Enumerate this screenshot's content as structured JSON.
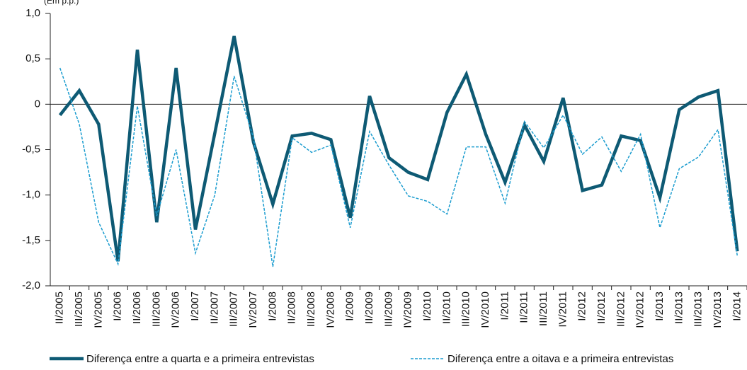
{
  "chart_data": {
    "type": "line",
    "y_axis_label": "(Em p.p.)",
    "categories": [
      "II/2005",
      "III/2005",
      "IV/2005",
      "I/2006",
      "II/2006",
      "III/2006",
      "IV/2006",
      "I/2007",
      "II/2007",
      "III/2007",
      "IV/2007",
      "I/2008",
      "II/2008",
      "III/2008",
      "IV/2008",
      "I/2009",
      "II/2009",
      "III/2009",
      "IV/2009",
      "I/2010",
      "II/2010",
      "III/2010",
      "IV/2010",
      "I/2011",
      "II/2011",
      "III/2011",
      "IV/2011",
      "I/2012",
      "II/2012",
      "III/2012",
      "IV/2012",
      "I/2013",
      "II/2013",
      "III/2013",
      "IV/2013",
      "I/2014"
    ],
    "series": [
      {
        "name": "Diferença entre a quarta e a primeira entrevistas",
        "color": "#0e5a74",
        "style": "solid",
        "values": [
          -0.12,
          0.15,
          -0.22,
          -1.73,
          0.6,
          -1.3,
          0.4,
          -1.38,
          -0.32,
          0.75,
          -0.42,
          -1.1,
          -0.35,
          -0.32,
          -0.39,
          -1.25,
          0.09,
          -0.59,
          -0.75,
          -0.83,
          -0.09,
          0.33,
          -0.33,
          -0.86,
          -0.23,
          -0.63,
          0.07,
          -0.95,
          -0.89,
          -0.35,
          -0.4,
          -1.03,
          -0.06,
          0.08,
          0.15,
          -1.62
        ]
      },
      {
        "name": "Diferença entre a oitava e a primeira entrevistas",
        "color": "#1a9ccf",
        "style": "dashed",
        "values": [
          0.4,
          -0.22,
          -1.3,
          -1.76,
          -0.02,
          -1.23,
          -0.5,
          -1.64,
          -1.0,
          0.31,
          -0.37,
          -1.79,
          -0.37,
          -0.53,
          -0.45,
          -1.36,
          -0.3,
          -0.67,
          -1.01,
          -1.07,
          -1.21,
          -0.47,
          -0.47,
          -1.09,
          -0.19,
          -0.48,
          -0.12,
          -0.55,
          -0.36,
          -0.74,
          -0.33,
          -1.36,
          -0.71,
          -0.58,
          -0.28,
          -1.67
        ]
      }
    ],
    "ylim": [
      -2,
      1
    ],
    "yticks": [
      {
        "value": 1,
        "label": "1,0"
      },
      {
        "value": 0.5,
        "label": "0,5"
      },
      0,
      {
        "value": -0.5,
        "label": "-0,5"
      },
      {
        "value": -1,
        "label": "-1,0"
      },
      {
        "value": -1.5,
        "label": "-1,5"
      },
      {
        "value": -2,
        "label": "-2,0"
      }
    ],
    "legend": "bottom"
  }
}
